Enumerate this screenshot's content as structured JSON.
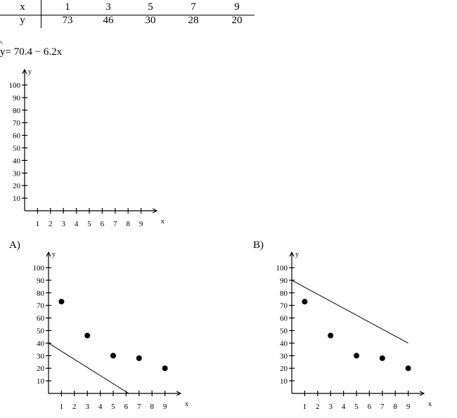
{
  "table": {
    "x_label": "x",
    "y_label": "y",
    "x_values": [
      "1",
      "3",
      "5",
      "7",
      "9"
    ],
    "y_values": [
      "73",
      "46",
      "30",
      "28",
      "20"
    ]
  },
  "equation": {
    "hat_mark": "^",
    "text": "y= 70.4 − 6.2x"
  },
  "options": {
    "a_label": "A)",
    "b_label": "B)"
  },
  "chart_data": [
    {
      "type": "scatter",
      "name_ref": "blank-axes",
      "xlabel": "x",
      "ylabel": "y",
      "x_ticks": [
        1,
        2,
        3,
        4,
        5,
        6,
        7,
        8,
        9
      ],
      "y_ticks": [
        10,
        20,
        30,
        40,
        50,
        60,
        70,
        80,
        90,
        100
      ],
      "xlim": [
        0,
        10
      ],
      "ylim": [
        0,
        110
      ],
      "points": [],
      "line": null
    },
    {
      "type": "scatter",
      "name_ref": "option-a",
      "xlabel": "x",
      "ylabel": "y",
      "x_ticks": [
        1,
        2,
        3,
        4,
        5,
        6,
        7,
        8,
        9
      ],
      "y_ticks": [
        10,
        20,
        30,
        40,
        50,
        60,
        70,
        80,
        90,
        100
      ],
      "xlim": [
        0,
        10
      ],
      "ylim": [
        0,
        110
      ],
      "points": [
        [
          1,
          73
        ],
        [
          3,
          46
        ],
        [
          5,
          30
        ],
        [
          7,
          28
        ],
        [
          9,
          20
        ]
      ],
      "line": {
        "x1": 0,
        "y1": 40,
        "x2": 6.2,
        "y2": 0
      }
    },
    {
      "type": "scatter",
      "name_ref": "option-b",
      "xlabel": "x",
      "ylabel": "y",
      "x_ticks": [
        1,
        2,
        3,
        4,
        5,
        6,
        7,
        8,
        9
      ],
      "y_ticks": [
        10,
        20,
        30,
        40,
        50,
        60,
        70,
        80,
        90,
        100
      ],
      "xlim": [
        0,
        10
      ],
      "ylim": [
        0,
        110
      ],
      "points": [
        [
          1,
          73
        ],
        [
          3,
          46
        ],
        [
          5,
          30
        ],
        [
          7,
          28
        ],
        [
          9,
          20
        ]
      ],
      "line": {
        "x1": 0,
        "y1": 90,
        "x2": 9,
        "y2": 40
      }
    }
  ]
}
